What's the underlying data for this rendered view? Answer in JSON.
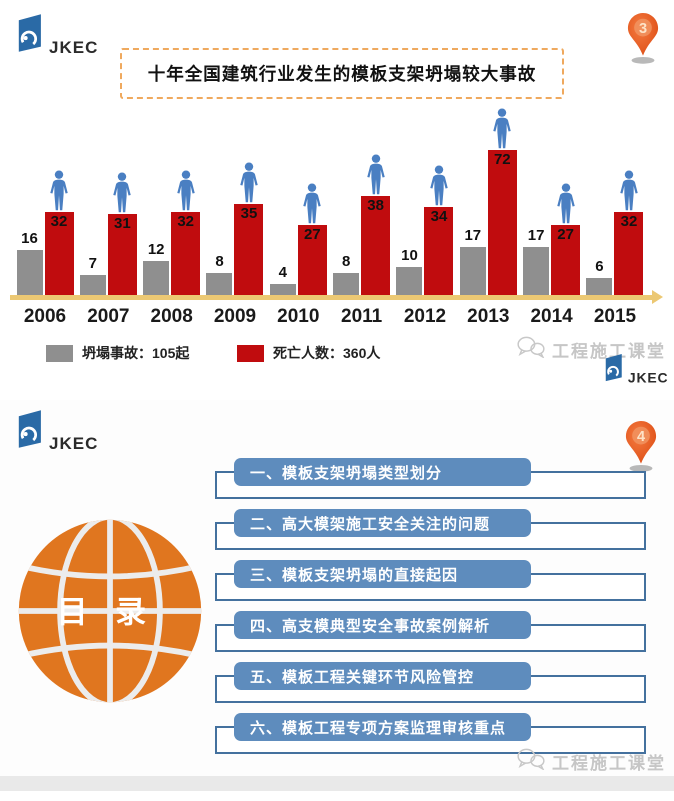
{
  "chart_data": {
    "type": "bar",
    "title": "十年全国建筑行业发生的模板支架坍塌较大事故",
    "categories": [
      "2006",
      "2007",
      "2008",
      "2009",
      "2010",
      "2011",
      "2012",
      "2013",
      "2014",
      "2015"
    ],
    "series": [
      {
        "name": "坍塌事故",
        "color": "#8f8f8f",
        "values": [
          16,
          7,
          12,
          8,
          4,
          8,
          10,
          17,
          17,
          6
        ],
        "total_label": "坍塌事故：105起"
      },
      {
        "name": "死亡人数",
        "color": "#c00c0e",
        "values": [
          32,
          31,
          32,
          35,
          27,
          38,
          34,
          72,
          27,
          32
        ],
        "total_label": "死亡人数：360人"
      }
    ],
    "xlabel": "",
    "ylabel": "",
    "legend_position": "bottom",
    "grid": false,
    "axis_line_color": "#ecc873",
    "marker_icon": "person-icon"
  },
  "slide1": {
    "logo_text": "JKEC",
    "page_marker": "3",
    "watermark": "工程施工课堂",
    "watermark_logo_text": "JKEC"
  },
  "slide2": {
    "logo_text": "JKEC",
    "page_marker": "4",
    "globe_label": "目 录",
    "toc_items": [
      "一、模板支架坍塌类型划分",
      "二、高大模架施工安全关注的问题",
      "三、模板支架坍塌的直接起因",
      "四、高支模典型安全事故案例解析",
      "五、模板工程关键环节风险管控",
      "六、模板工程专项方案监理审核重点"
    ],
    "watermark": "工程施工课堂"
  },
  "colors": {
    "accident_bar": "#8f8f8f",
    "death_bar": "#c00c0e",
    "axis_line": "#ecc873",
    "toc_bar_fill": "#5e8cbd",
    "toc_outline": "#44719e",
    "globe_fill": "#e0761f",
    "pin_fill": "#e65c20",
    "title_border": "#efa95e"
  }
}
